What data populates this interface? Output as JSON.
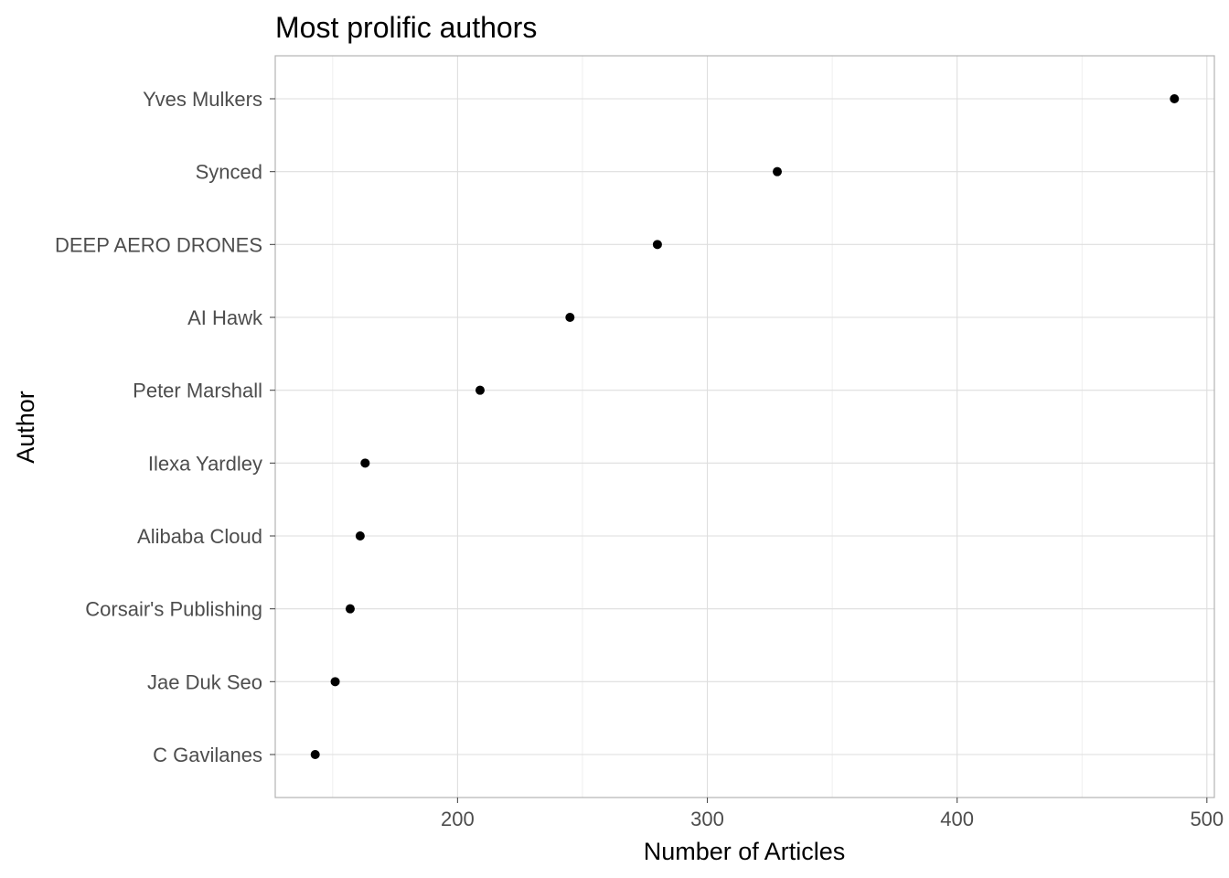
{
  "chart_data": {
    "type": "scatter",
    "title": "Most prolific authors",
    "xlabel": "Number of Articles",
    "ylabel": "Author",
    "xlim": [
      127,
      503
    ],
    "x_ticks": [
      200,
      300,
      400,
      500
    ],
    "x_minor_ticks": [
      150,
      250,
      350,
      450
    ],
    "grid": true,
    "legend": "none",
    "point_color": "#000000",
    "categories": [
      "Yves Mulkers",
      "Synced",
      "DEEP AERO DRONES",
      "AI Hawk",
      "Peter Marshall",
      "Ilexa Yardley",
      "Alibaba Cloud",
      "Corsair's Publishing",
      "Jae Duk Seo",
      "C Gavilanes"
    ],
    "values": [
      487,
      328,
      280,
      245,
      209,
      163,
      161,
      157,
      151,
      143
    ]
  }
}
